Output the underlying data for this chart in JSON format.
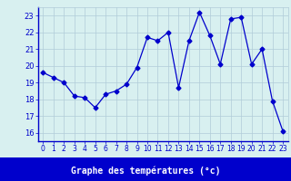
{
  "x": [
    0,
    1,
    2,
    3,
    4,
    5,
    6,
    7,
    8,
    9,
    10,
    11,
    12,
    13,
    14,
    15,
    16,
    17,
    18,
    19,
    20,
    21,
    22,
    23
  ],
  "y": [
    19.6,
    19.3,
    19.0,
    18.2,
    18.1,
    17.5,
    18.3,
    18.5,
    18.9,
    19.9,
    21.7,
    21.5,
    22.0,
    18.7,
    21.5,
    23.2,
    21.8,
    20.1,
    22.8,
    22.9,
    20.1,
    21.0,
    17.9,
    16.1
  ],
  "line_color": "#0000cc",
  "marker": "D",
  "marker_size": 2.5,
  "bg_color": "#d8f0f0",
  "grid_color": "#b0ccd8",
  "xlabel": "Graphe des températures (°c)",
  "tick_color": "#0000cc",
  "label_bar_color": "#0000cc",
  "ylim": [
    15.5,
    23.5
  ],
  "xlim": [
    -0.5,
    23.5
  ],
  "yticks": [
    16,
    17,
    18,
    19,
    20,
    21,
    22,
    23
  ],
  "xticks": [
    0,
    1,
    2,
    3,
    4,
    5,
    6,
    7,
    8,
    9,
    10,
    11,
    12,
    13,
    14,
    15,
    16,
    17,
    18,
    19,
    20,
    21,
    22,
    23
  ]
}
